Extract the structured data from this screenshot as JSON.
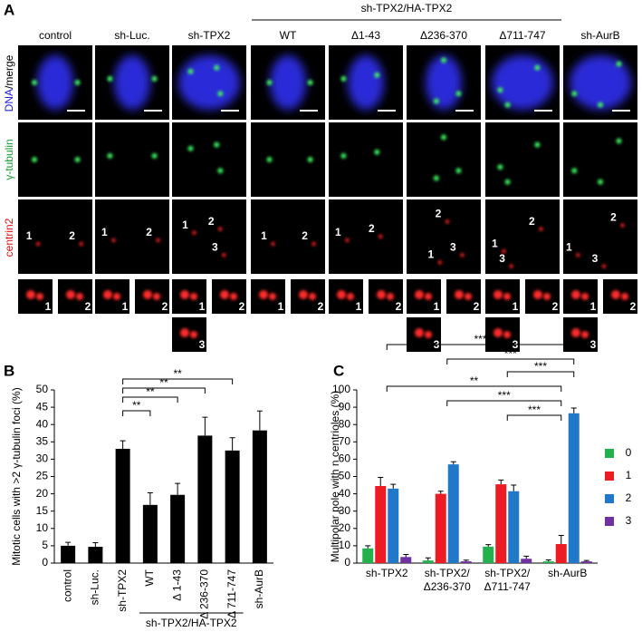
{
  "panel_labels": [
    "A",
    "B",
    "C"
  ],
  "panel_a": {
    "header": "sh-TPX2/HA-TPX2",
    "row_labels": {
      "dna": "DNA",
      "merge": "/merge",
      "tubulin": "γ-tubulin",
      "centrin": "centrin2"
    },
    "columns": [
      {
        "label": "control",
        "centrin": [
          "1",
          "2"
        ],
        "insets": [
          "1",
          "2"
        ]
      },
      {
        "label": "sh-Luc.",
        "centrin": [
          "1",
          "2"
        ],
        "insets": [
          "1",
          "2"
        ]
      },
      {
        "label": "sh-TPX2",
        "centrin": [
          "1",
          "2",
          "3"
        ],
        "insets": [
          "1",
          "2",
          "3"
        ]
      },
      {
        "label": "WT",
        "centrin": [
          "1",
          "2"
        ],
        "insets": [
          "1",
          "2"
        ]
      },
      {
        "label": "Δ1-43",
        "centrin": [
          "1",
          "2"
        ],
        "insets": [
          "1",
          "2"
        ]
      },
      {
        "label": "Δ236-370",
        "centrin": [
          "2",
          "1",
          "3"
        ],
        "insets": [
          "1",
          "2",
          "3"
        ]
      },
      {
        "label": "Δ711-747",
        "centrin": [
          "2",
          "1",
          "3"
        ],
        "insets": [
          "1",
          "2",
          "3"
        ]
      },
      {
        "label": "sh-AurB",
        "centrin": [
          "2",
          "1",
          "3"
        ],
        "insets": [
          "1",
          "2",
          "3"
        ]
      }
    ]
  },
  "chart_data": [
    {
      "type": "bar",
      "y_label": "Mitotic cells with >2 γ-tubulin foci (%)",
      "categories": [
        "control",
        "sh-Luc.",
        "sh-TPX2",
        "WT",
        "Δ 1-43",
        "Δ 236-370",
        "Δ 711-747",
        "sh-AurB"
      ],
      "values": [
        5,
        4.7,
        33,
        16.8,
        19.7,
        36.8,
        32.5,
        38.3
      ],
      "errors": [
        1,
        1.2,
        2.3,
        3.5,
        3.3,
        5.3,
        3.7,
        5.6
      ],
      "color": "#000000",
      "group_label": "sh-TPX2/HA-TPX2",
      "annotations": [
        "**",
        "**",
        "**",
        "**"
      ],
      "ylim": [
        0,
        50
      ],
      "yticks": [
        0,
        5,
        10,
        15,
        20,
        25,
        30,
        35,
        40,
        45,
        50
      ]
    },
    {
      "type": "grouped_bar",
      "y_label": "Multipolar pole with n centrioles (%)",
      "categories": [
        "sh-TPX2",
        "sh-TPX2/Δ236-370",
        "sh-TPX2/Δ711-747",
        "sh-AurB"
      ],
      "series": [
        {
          "name": "0",
          "color": "#22b14c",
          "values": [
            8.5,
            1.5,
            9.5,
            1
          ],
          "errors": [
            1.5,
            1.5,
            1.2,
            0.8
          ]
        },
        {
          "name": "1",
          "color": "#ed1c24",
          "values": [
            44.5,
            40,
            45.5,
            11
          ],
          "errors": [
            5,
            1.5,
            2.5,
            5
          ]
        },
        {
          "name": "2",
          "color": "#1f78c8",
          "values": [
            43,
            57,
            41.5,
            86.5
          ],
          "errors": [
            2.5,
            1.5,
            3.5,
            3
          ]
        },
        {
          "name": "3",
          "color": "#7030a0",
          "values": [
            3.5,
            1,
            2.5,
            1
          ],
          "errors": [
            1.5,
            0.7,
            1.5,
            0.5
          ]
        }
      ],
      "annotations": [
        "***",
        "***",
        "***",
        "**",
        "***",
        "***"
      ],
      "legend": "right",
      "ylim": [
        0,
        100
      ],
      "yticks": [
        0,
        10,
        20,
        30,
        40,
        50,
        60,
        70,
        80,
        90,
        100
      ]
    }
  ]
}
